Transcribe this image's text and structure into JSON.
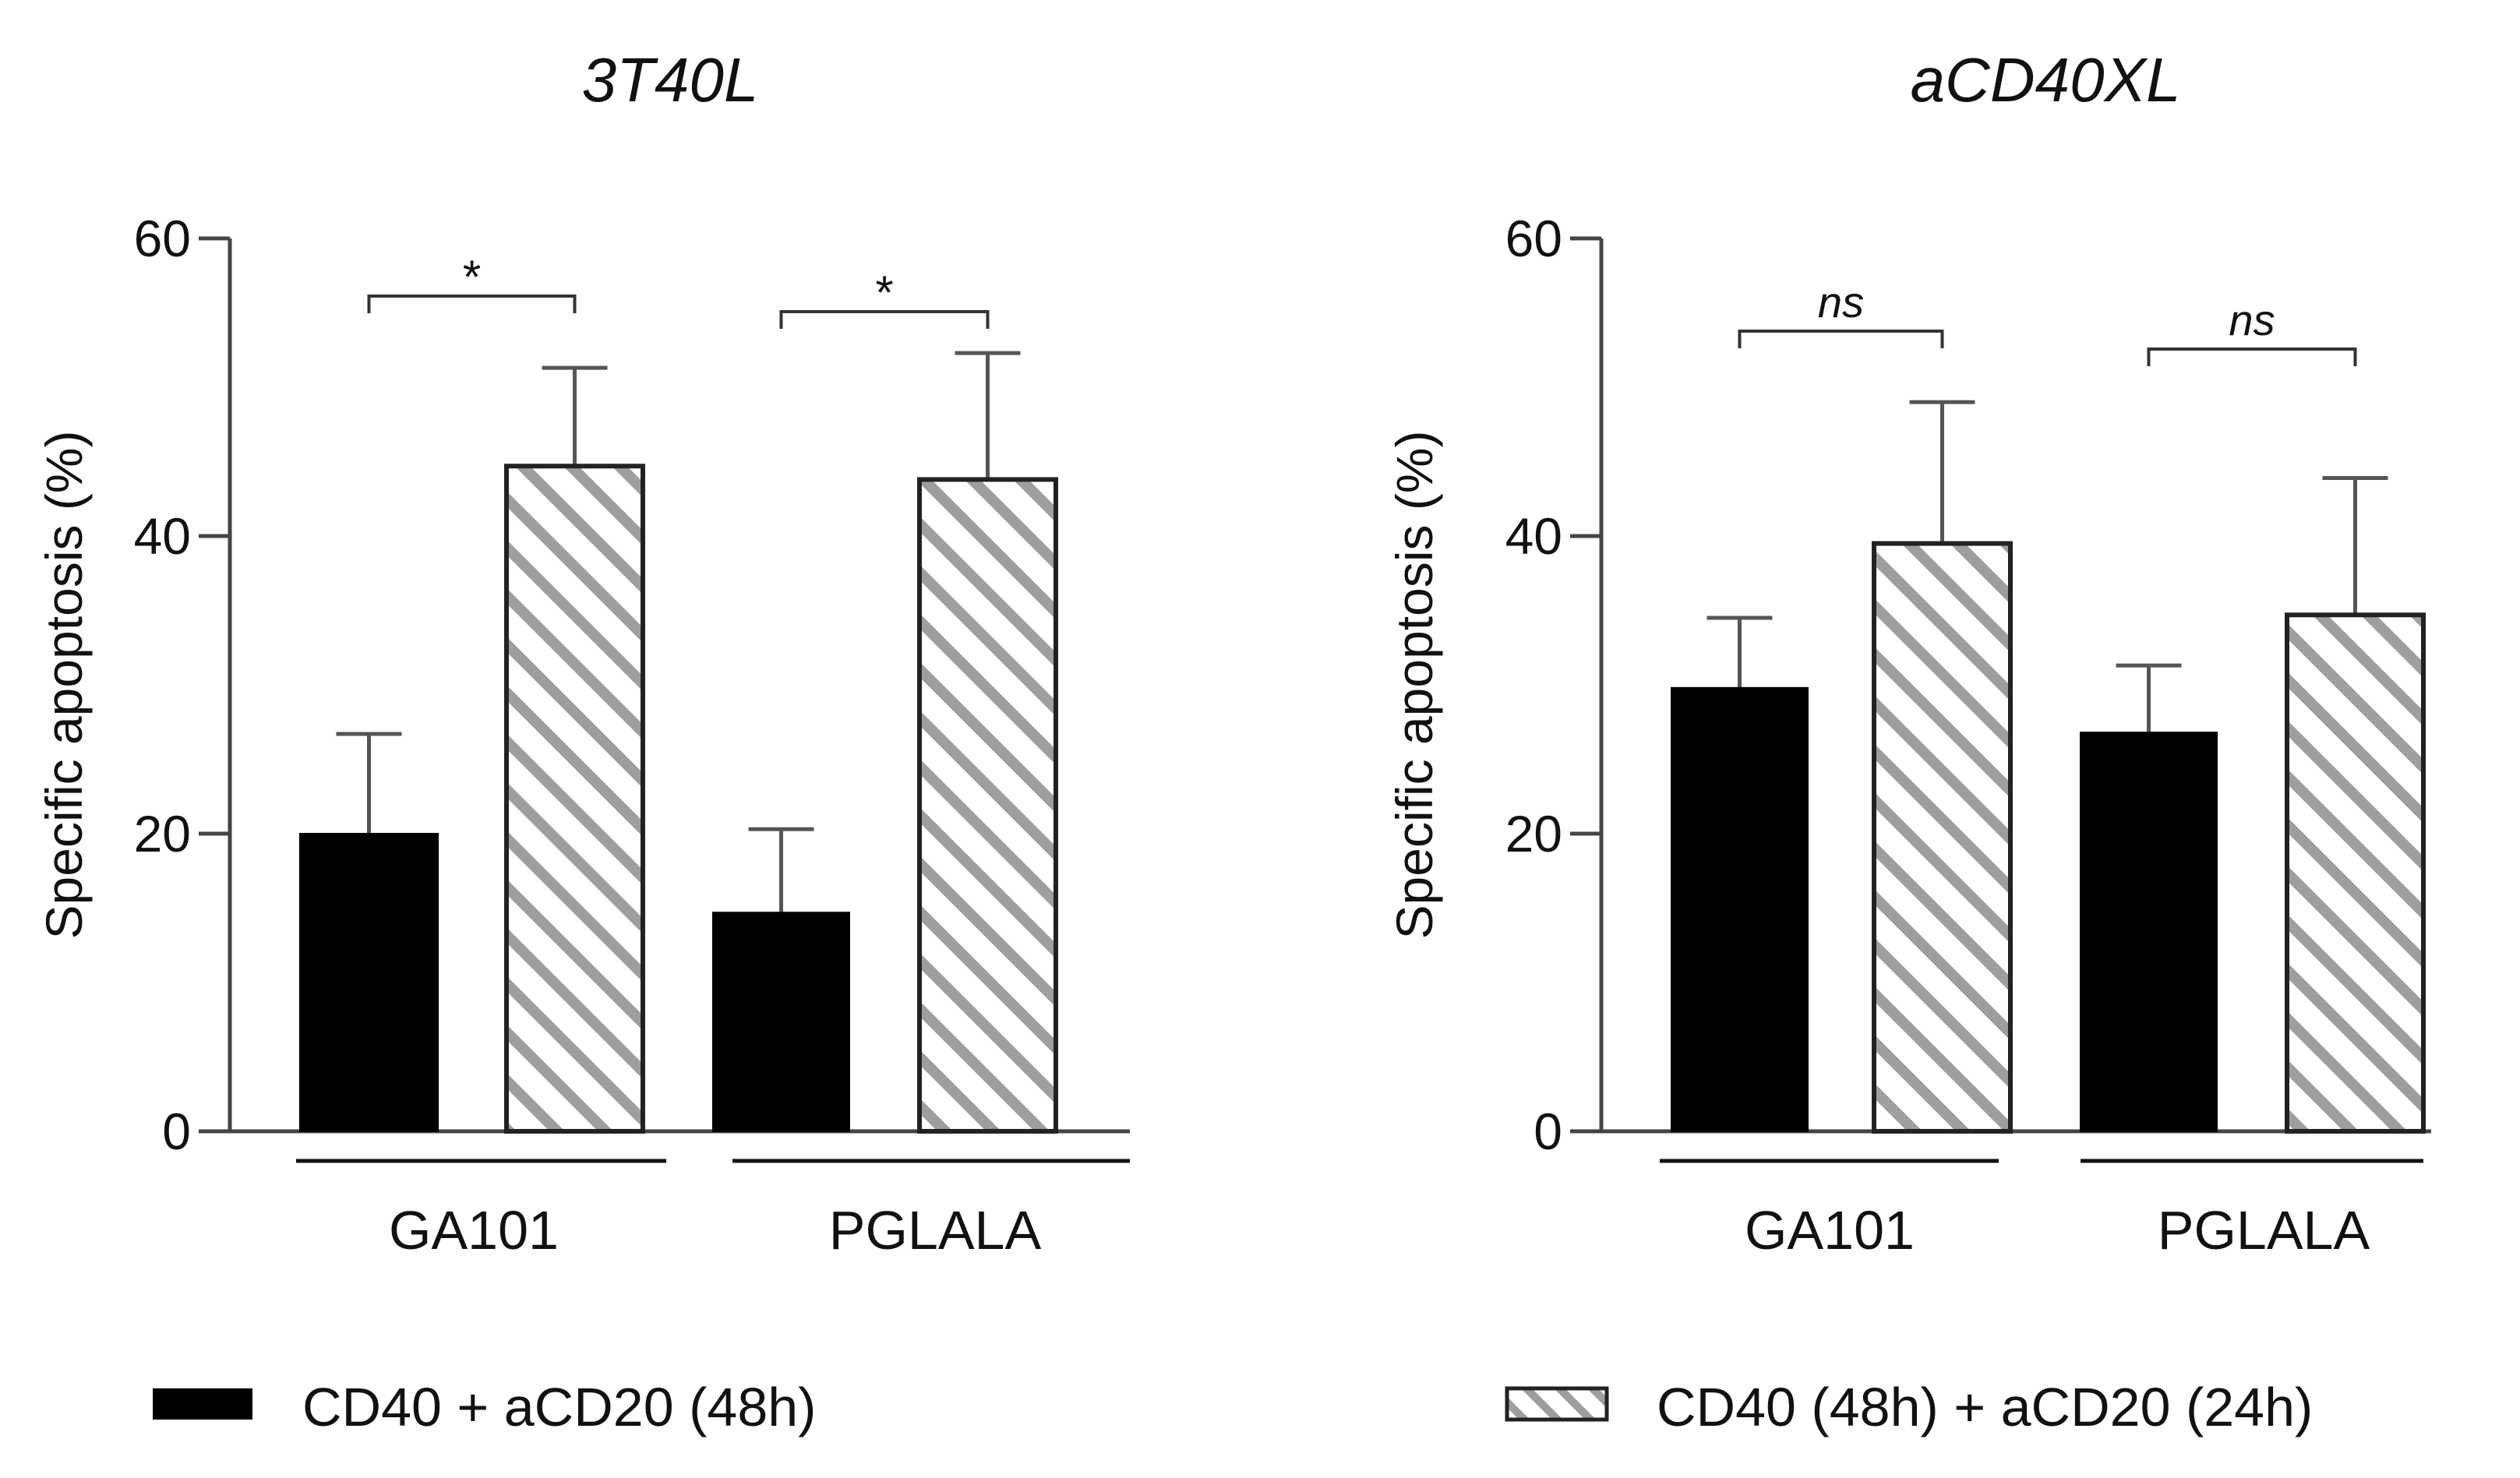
{
  "chart_data": [
    {
      "type": "bar",
      "title": "3T40L",
      "xlabel": "",
      "ylabel": "Specific apoptosis (%)",
      "ylim": [
        0,
        60
      ],
      "yticks": [
        0,
        20,
        40,
        60
      ],
      "groups": [
        "GA101",
        "PGLALA"
      ],
      "series": [
        {
          "name": "CD40 + aCD20 (48h)",
          "style": "solid",
          "values": [
            20,
            14.7
          ],
          "errors": [
            6.7,
            5.6
          ]
        },
        {
          "name": "CD40 (48h) + aCD20 (24h)",
          "style": "hatched",
          "values": [
            44.7,
            43.8
          ],
          "errors": [
            6.6,
            8.5
          ]
        }
      ],
      "significance": [
        "*",
        "*"
      ]
    },
    {
      "type": "bar",
      "title": "aCD40XL",
      "xlabel": "",
      "ylabel": "Specific apoptosis (%)",
      "ylim": [
        0,
        60
      ],
      "yticks": [
        0,
        20,
        40,
        60
      ],
      "groups": [
        "GA101",
        "PGLALA"
      ],
      "series": [
        {
          "name": "CD40 + aCD20 (48h)",
          "style": "solid",
          "values": [
            29.8,
            26.8
          ],
          "errors": [
            4.7,
            4.5
          ]
        },
        {
          "name": "CD40 (48h) + aCD20 (24h)",
          "style": "hatched",
          "values": [
            39.5,
            34.7
          ],
          "errors": [
            9.5,
            9.2
          ]
        }
      ],
      "significance": [
        "ns",
        "ns"
      ]
    }
  ],
  "legend": {
    "solid_label": "CD40 + aCD20 (48h)",
    "hatched_label": "CD40 (48h) + aCD20 (24h)"
  },
  "colors": {
    "solid": "#000000",
    "hatch_stripe": "#9e9e9e",
    "hatch_bg": "#ffffff",
    "axis": "#444444"
  }
}
